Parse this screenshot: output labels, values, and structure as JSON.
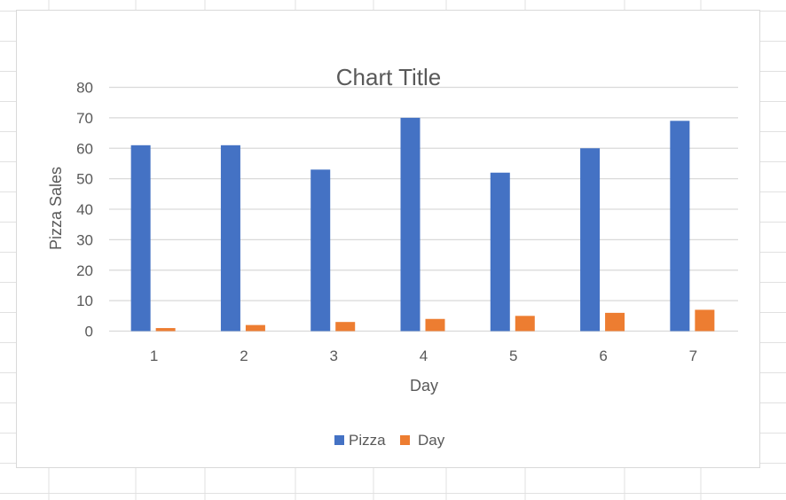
{
  "colors": {
    "pizza": "#4472c4",
    "day": "#ed7d31",
    "gridline": "#d9d9d9",
    "text": "#595959",
    "sheet_grid": "#e1e1e1"
  },
  "legend_icons": [
    "square-swatch",
    "square-swatch"
  ],
  "chart_data": {
    "type": "bar",
    "title": "Chart Title",
    "xlabel": "Day",
    "ylabel": "Pizza Sales",
    "categories": [
      "1",
      "2",
      "3",
      "4",
      "5",
      "6",
      "7"
    ],
    "series": [
      {
        "name": "Pizza",
        "values": [
          61,
          61,
          53,
          70,
          52,
          60,
          69
        ]
      },
      {
        "name": "Day",
        "values": [
          1,
          2,
          3,
          4,
          5,
          6,
          7
        ]
      }
    ],
    "ylim": [
      0,
      80
    ],
    "yticks": [
      "0",
      "10",
      "20",
      "30",
      "40",
      "50",
      "60",
      "70",
      "80"
    ],
    "grid": true,
    "legend_position": "bottom"
  }
}
